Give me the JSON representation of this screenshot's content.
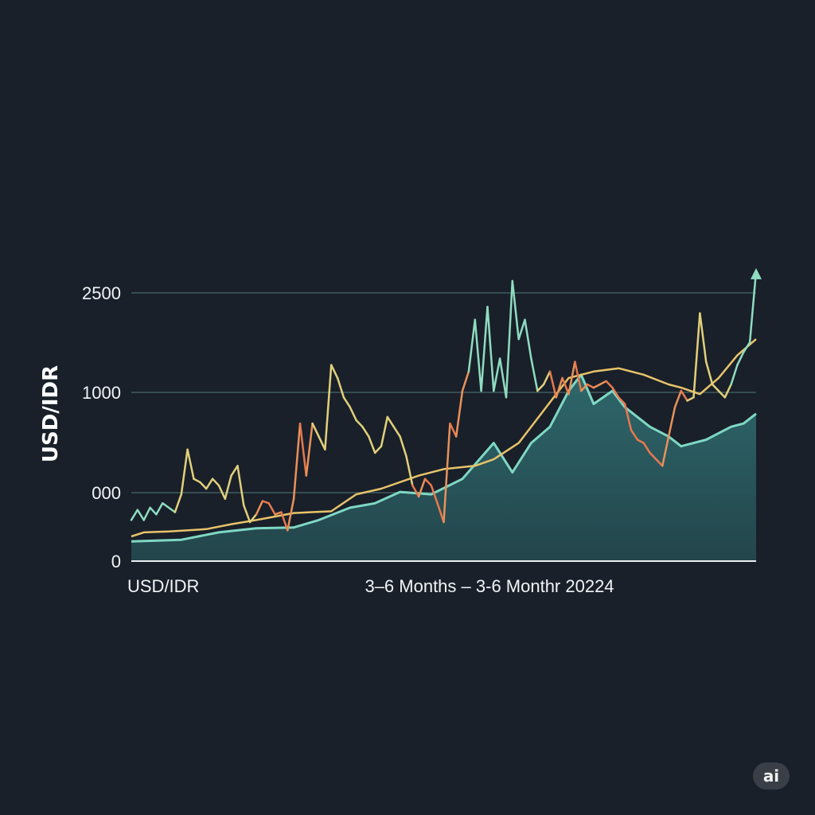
{
  "chart_data": {
    "type": "line",
    "ylabel": "USD/IDR",
    "xlabel": "3–6 Months – 3-6 Monthr 20224",
    "x_start_label": "USD/IDR",
    "yticks": [
      "0",
      "000",
      "1000",
      "2500"
    ],
    "grid": true,
    "x_range": [
      0,
      100
    ],
    "series": [
      {
        "color": "#7fd8c4",
        "style": "area",
        "x": [
          0,
          4,
          8,
          14,
          20,
          26,
          30,
          35,
          39,
          43,
          48,
          53,
          58,
          61,
          64,
          67,
          70,
          72,
          74,
          77,
          79,
          83,
          86,
          88,
          90,
          92,
          94,
          96,
          98,
          100
        ],
        "y": [
          0.48,
          0.5,
          0.52,
          0.7,
          0.8,
          0.82,
          1.0,
          1.2,
          1.3,
          1.55,
          1.5,
          1.75,
          2.3,
          1.85,
          2.3,
          2.55,
          3.1,
          3.35,
          2.9,
          3.1,
          2.85,
          2.55,
          2.4,
          2.25,
          2.3,
          2.35,
          2.45,
          2.55,
          2.6,
          2.75
        ]
      },
      {
        "color": "#e8c36a",
        "style": "line",
        "x": [
          0,
          2,
          6,
          12,
          16,
          20,
          26,
          32,
          36,
          40,
          46,
          50,
          55,
          58,
          62,
          66,
          70,
          74,
          78,
          82,
          86,
          88,
          91,
          94,
          97,
          100
        ],
        "y": [
          0.6,
          0.7,
          0.72,
          0.78,
          0.9,
          1.0,
          1.08,
          1.12,
          1.5,
          1.6,
          1.8,
          1.9,
          1.95,
          2.05,
          2.3,
          2.8,
          3.3,
          3.4,
          3.45,
          3.35,
          3.2,
          3.15,
          3.05,
          3.3,
          3.65,
          3.9
        ]
      },
      {
        "color": "#e2d07a",
        "style": "jagged",
        "x": [
          0,
          1,
          2,
          3,
          4,
          5,
          6,
          7,
          8,
          9,
          10,
          11,
          12,
          13,
          14,
          15,
          16,
          17,
          18,
          19,
          20,
          21,
          22,
          23,
          24,
          25,
          26,
          27,
          28,
          29,
          30,
          31,
          32,
          33,
          34,
          35,
          36,
          37,
          38,
          39,
          40,
          41,
          42,
          43,
          44,
          45,
          46,
          47,
          48,
          49,
          50,
          51,
          52,
          53,
          54,
          55,
          56,
          57,
          58,
          59,
          60,
          61,
          62,
          63,
          64,
          65,
          66,
          67,
          68,
          69,
          70,
          71,
          72,
          73,
          74,
          75,
          76,
          77,
          78,
          79,
          80,
          81,
          82,
          83,
          84,
          85,
          86,
          87,
          88,
          89,
          90,
          91,
          92,
          93,
          94,
          95,
          96,
          97,
          98,
          99,
          100
        ],
        "y": [
          1.0,
          1.15,
          1.0,
          1.2,
          1.05,
          1.3,
          1.2,
          1.1,
          1.5,
          2.2,
          1.75,
          1.7,
          1.6,
          1.75,
          1.65,
          1.4,
          1.8,
          1.95,
          1.25,
          0.95,
          1.05,
          1.35,
          1.3,
          1.05,
          1.1,
          0.75,
          1.4,
          2.6,
          1.8,
          2.6,
          2.4,
          2.2,
          3.5,
          3.3,
          3.0,
          2.85,
          2.65,
          2.55,
          2.4,
          2.15,
          2.25,
          2.7,
          2.55,
          2.4,
          2.1,
          1.65,
          1.45,
          1.75,
          1.65,
          1.3,
          0.95,
          2.6,
          2.4,
          3.1,
          3.4,
          4.2,
          3.1,
          4.4,
          3.1,
          3.6,
          3.0,
          4.8,
          3.9,
          4.2,
          3.6,
          3.1,
          3.2,
          3.4,
          3.0,
          3.3,
          3.05,
          3.55,
          3.1,
          3.2,
          3.15,
          3.2,
          3.25,
          3.15,
          3.0,
          2.9,
          2.5,
          2.35,
          2.3,
          2.15,
          2.05,
          1.95,
          2.4,
          2.85,
          3.1,
          2.95,
          3.0,
          4.3,
          3.55,
          3.2,
          3.1,
          3.0,
          3.2,
          3.5,
          3.7,
          3.85,
          4.95
        ]
      }
    ]
  },
  "badge": {
    "label": "ai"
  }
}
